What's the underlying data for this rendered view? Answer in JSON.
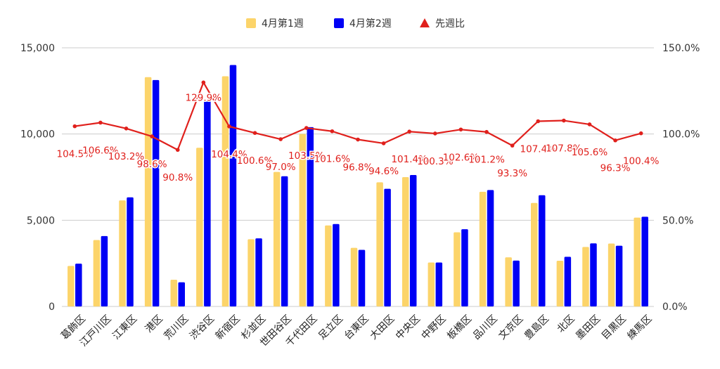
{
  "chart_data": {
    "type": "bar",
    "categories": [
      "葛飾区",
      "江戸川区",
      "江東区",
      "港区",
      "荒川区",
      "渋谷区",
      "新宿区",
      "杉並区",
      "世田谷区",
      "千代田区",
      "足立区",
      "台東区",
      "大田区",
      "中央区",
      "中野区",
      "板橋区",
      "品川区",
      "文京区",
      "豊島区",
      "北区",
      "墨田区",
      "目黒区",
      "練馬区"
    ],
    "series": [
      {
        "name": "4月第1週",
        "type": "bar",
        "axis": "left",
        "color": "#fcd46a",
        "values": [
          2350,
          3850,
          6150,
          13300,
          1550,
          9200,
          13350,
          3900,
          7800,
          10000,
          4700,
          3400,
          7200,
          7500,
          2550,
          4300,
          6650,
          2850,
          6000,
          2650,
          3450,
          3650,
          5150
        ]
      },
      {
        "name": "4月第2週",
        "type": "bar",
        "axis": "left",
        "color": "#0000f5",
        "values": [
          2480,
          4080,
          6330,
          13130,
          1400,
          11950,
          14000,
          3950,
          7550,
          10400,
          4780,
          3280,
          6820,
          7620,
          2550,
          4480,
          6750,
          2660,
          6450,
          2880,
          3660,
          3520,
          5200
        ]
      },
      {
        "name": "先週比",
        "type": "line",
        "axis": "right",
        "color": "#e0201c",
        "values": [
          104.5,
          106.6,
          103.2,
          98.6,
          90.8,
          129.9,
          104.4,
          100.6,
          97.0,
          103.5,
          101.6,
          96.8,
          94.6,
          101.4,
          100.3,
          102.6,
          101.2,
          93.3,
          107.4,
          107.8,
          105.6,
          96.3,
          100.4
        ],
        "labels": [
          "104.5%",
          "106.6%",
          "103.2%",
          "98.6%",
          "90.8%",
          "129.9%",
          "104.4%",
          "100.6%",
          "97.0%",
          "103.5%",
          "101.6%",
          "96.8%",
          "94.6%",
          "101.4%",
          "100.3%",
          "102.6%",
          "101.2%",
          "93.3%",
          "107.4%",
          "107.8%",
          "105.6%",
          "96.3%",
          "100.4%"
        ]
      }
    ],
    "y_left": {
      "min": 0,
      "max": 15000,
      "ticks": [
        0,
        5000,
        10000,
        15000
      ],
      "tick_labels": [
        "0",
        "5,000",
        "10,000",
        "15,000"
      ]
    },
    "y_right": {
      "min": 0,
      "max": 150,
      "ticks": [
        0,
        50,
        100,
        150
      ],
      "tick_labels": [
        "0.0%",
        "50.0%",
        "100.0%",
        "150.0%"
      ]
    },
    "grid": true,
    "legend_position": "top"
  }
}
